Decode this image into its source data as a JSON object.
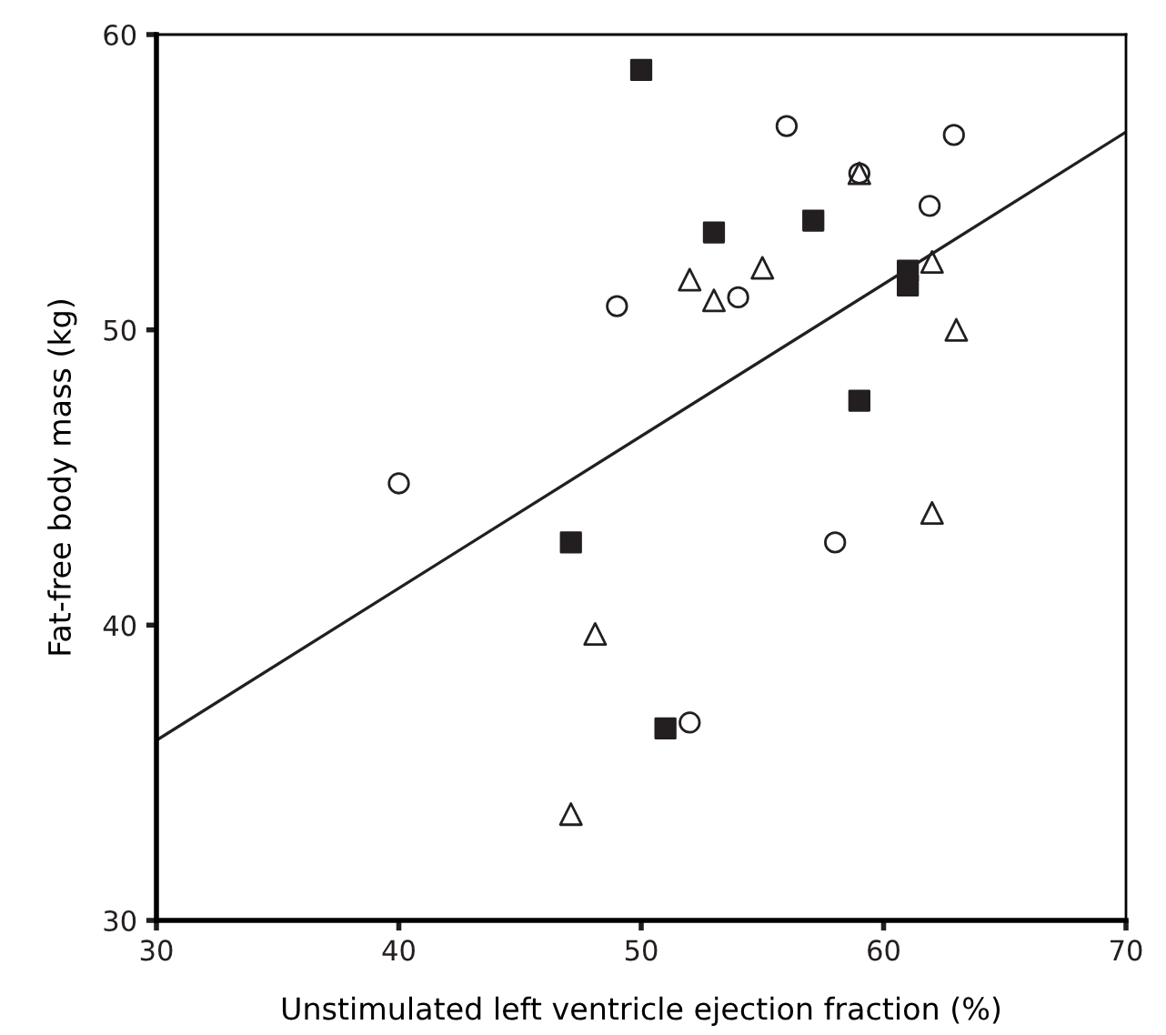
{
  "chart_data": {
    "type": "scatter",
    "xlabel": "Unstimulated left ventricle ejection fraction (%)",
    "ylabel": "Fat-free body mass (kg)",
    "xlim": [
      30,
      70
    ],
    "ylim": [
      30,
      60
    ],
    "xticks": [
      30,
      40,
      50,
      60,
      70
    ],
    "yticks": [
      30,
      40,
      50,
      60
    ],
    "grid": false,
    "legend": false,
    "series": [
      {
        "marker": "square",
        "color": "#231f20",
        "x": [
          50.0,
          53.0,
          57.1,
          61.0,
          61.0,
          59.0,
          47.1,
          51.0
        ],
        "values": [
          58.8,
          53.3,
          53.7,
          52.0,
          51.5,
          47.6,
          42.8,
          36.5
        ]
      },
      {
        "marker": "circle",
        "color": "#231f20",
        "x": [
          56.0,
          62.9,
          59.0,
          61.9,
          49.0,
          54.0,
          40.0,
          58.0,
          52.0
        ],
        "values": [
          56.9,
          56.6,
          55.3,
          54.2,
          50.8,
          51.1,
          44.8,
          42.8,
          36.7
        ]
      },
      {
        "marker": "triangle",
        "color": "#231f20",
        "x": [
          59.0,
          52.0,
          53.0,
          55.0,
          62.0,
          63.0,
          62.0,
          48.1,
          47.1
        ],
        "values": [
          55.3,
          51.7,
          51.0,
          52.1,
          52.3,
          50.0,
          43.8,
          39.7,
          33.6
        ]
      },
      {
        "type": "line",
        "marker": "none",
        "line_style": "solid",
        "color": "#231f20",
        "x": [
          30,
          70
        ],
        "values": [
          36.1,
          56.7
        ]
      }
    ]
  }
}
